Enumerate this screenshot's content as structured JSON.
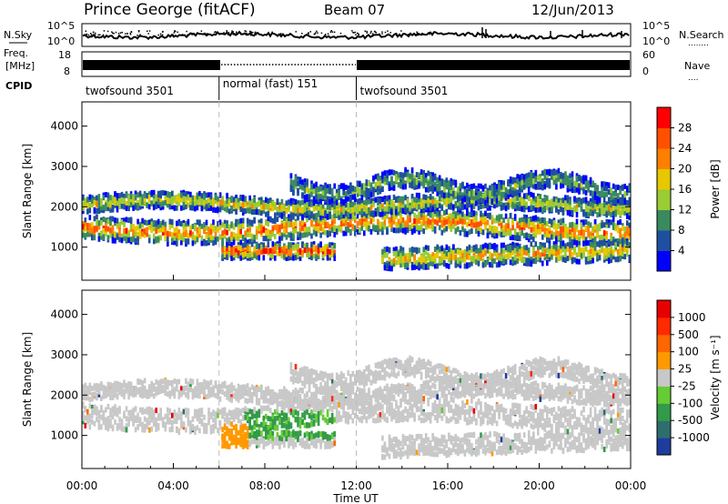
{
  "header": {
    "station": "Prince George (fitACF)",
    "beam": "Beam 07",
    "date": "12/Jun/2013"
  },
  "side_labels": {
    "nsky": "N.Sky",
    "nsearch": "N.Search",
    "freq_line1": "Freq.",
    "freq_line2": "[MHz]",
    "nave": "Nave",
    "cpid": "CPID",
    "dots_nsearch": "........",
    "dots_nave": "...."
  },
  "noise_axis": {
    "left_ticks": [
      "10^5",
      "10^0"
    ],
    "right_ticks": [
      "10^5",
      "10^0"
    ]
  },
  "freq_axis": {
    "left_ticks": [
      "18",
      "8"
    ],
    "right_ticks": [
      "60",
      "0"
    ]
  },
  "cpid_segments": [
    {
      "label": "twofsound 3501",
      "start_hour": 0,
      "end_hour": 6
    },
    {
      "label": "normal (fast) 151",
      "start_hour": 6,
      "end_hour": 12
    },
    {
      "label": "twofsound 3501",
      "start_hour": 12,
      "end_hour": 24
    }
  ],
  "time_axis": {
    "label": "Time UT",
    "range_hours": [
      0,
      24
    ],
    "ticks": [
      "00:00",
      "04:00",
      "08:00",
      "12:00",
      "16:00",
      "20:00",
      "00:00"
    ],
    "markers_hours": [
      6,
      12
    ]
  },
  "chart_data": [
    {
      "type": "heatmap",
      "panel": "power",
      "ylabel": "Slant Range [km]",
      "ylim": [
        180,
        4600
      ],
      "yticks": [
        "1000",
        "2000",
        "3000",
        "4000"
      ],
      "colorbar_label": "Power [dB]",
      "colorbar_ticks": [
        "4",
        "8",
        "12",
        "16",
        "20",
        "24",
        "28"
      ],
      "colorbar_colors": [
        "#0000ff",
        "#1f4fa0",
        "#3a8a60",
        "#9acc33",
        "#e6c800",
        "#ff8000",
        "#ff5000",
        "#ff0000"
      ]
    },
    {
      "type": "heatmap",
      "panel": "velocity",
      "ylabel": "Slant Range [km]",
      "ylim": [
        180,
        4600
      ],
      "yticks": [
        "1000",
        "2000",
        "3000",
        "4000"
      ],
      "colorbar_label": "Velocity [m s⁻¹]",
      "colorbar_ticks": [
        "1000",
        "500",
        "100",
        "25",
        "-25",
        "-100",
        "-500",
        "-1000"
      ],
      "colorbar_colors": [
        "#1e3c9e",
        "#2e6e6e",
        "#339a4a",
        "#66cc33",
        "#c8c8c8",
        "#ff9900",
        "#ff6600",
        "#ff2a00",
        "#e60000"
      ]
    }
  ]
}
